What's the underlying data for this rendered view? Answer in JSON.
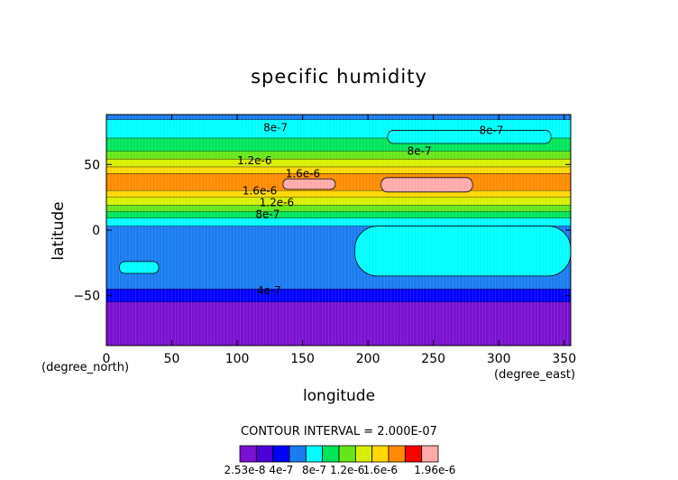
{
  "chart_data": {
    "type": "heatmap",
    "title": "specific humidity",
    "xlabel": "longitude",
    "ylabel": "latitude",
    "x_unit_label": "(degree_east)",
    "y_unit_label": "(degree_north)",
    "xlim": [
      0,
      355
    ],
    "ylim": [
      -88,
      88
    ],
    "x_ticks": [
      "0",
      "50",
      "100",
      "150",
      "200",
      "250",
      "300",
      "350"
    ],
    "x_tick_values": [
      0,
      50,
      100,
      150,
      200,
      250,
      300,
      350
    ],
    "y_ticks": [
      "50",
      "0",
      "−50"
    ],
    "y_tick_values": [
      50,
      0,
      -50
    ],
    "contour_interval_label": "CONTOUR INTERVAL = 2.000E-07",
    "levels": [
      2.53e-08,
      4e-07,
      6e-07,
      8e-07,
      1e-06,
      1.2e-06,
      1.4e-06,
      1.6e-06,
      1.8e-06,
      1.96e-06
    ],
    "colorbar_colors": [
      "#7a10d0",
      "#4c00d8",
      "#0000ff",
      "#1a7cf0",
      "#00ffff",
      "#00e65c",
      "#66e61a",
      "#d8f000",
      "#ffd800",
      "#ff8c00",
      "#ff0000",
      "#ffaaaa"
    ],
    "colorbar_labels": [
      "2.53e-8",
      "4e-7",
      "8e-7",
      "1.2e-6",
      "1.6e-6",
      "1.96e-6"
    ],
    "contour_labels": [
      {
        "text": "8e-7",
        "lon": 120,
        "lat": 78
      },
      {
        "text": "8e-7",
        "lon": 285,
        "lat": 76
      },
      {
        "text": "8e-7",
        "lon": 230,
        "lat": 60
      },
      {
        "text": "1.2e-6",
        "lon": 100,
        "lat": 53
      },
      {
        "text": "1.6e-6",
        "lon": 137,
        "lat": 43
      },
      {
        "text": "1.6e-6",
        "lon": 104,
        "lat": 30
      },
      {
        "text": "1.2e-6",
        "lon": 117,
        "lat": 21
      },
      {
        "text": "8e-7",
        "lon": 114,
        "lat": 12
      },
      {
        "text": "4e-7",
        "lon": 115,
        "lat": -46
      }
    ],
    "latitude_bands": [
      {
        "lat_top": 88,
        "lat_bottom": 84,
        "value": 6e-07
      },
      {
        "lat_top": 84,
        "lat_bottom": 70,
        "value": 8e-07
      },
      {
        "lat_top": 70,
        "lat_bottom": 60,
        "value": 1e-06
      },
      {
        "lat_top": 60,
        "lat_bottom": 54,
        "value": 1.2e-06
      },
      {
        "lat_top": 54,
        "lat_bottom": 48,
        "value": 1.4e-06
      },
      {
        "lat_top": 48,
        "lat_bottom": 43,
        "value": 1.6e-06
      },
      {
        "lat_top": 43,
        "lat_bottom": 30,
        "value": 1.8e-06
      },
      {
        "lat_top": 30,
        "lat_bottom": 25,
        "value": 1.6e-06
      },
      {
        "lat_top": 25,
        "lat_bottom": 19,
        "value": 1.4e-06
      },
      {
        "lat_top": 19,
        "lat_bottom": 14,
        "value": 1.2e-06
      },
      {
        "lat_top": 14,
        "lat_bottom": 9,
        "value": 1e-06
      },
      {
        "lat_top": 9,
        "lat_bottom": 3,
        "value": 8e-07
      },
      {
        "lat_top": 3,
        "lat_bottom": -45,
        "value": 6e-07
      },
      {
        "lat_top": -45,
        "lat_bottom": -55,
        "value": 4e-07
      },
      {
        "lat_top": -55,
        "lat_bottom": -88,
        "value": 2.53e-08
      }
    ],
    "patches": [
      {
        "lon0": 210,
        "lon1": 280,
        "lat0": 29,
        "lat1": 40,
        "value": 1.96e-06
      },
      {
        "lon0": 135,
        "lon1": 175,
        "lat0": 31,
        "lat1": 39,
        "value": 1.96e-06
      },
      {
        "lon0": 190,
        "lon1": 355,
        "lat0": -35,
        "lat1": 3,
        "value": 8e-07
      },
      {
        "lon0": 215,
        "lon1": 340,
        "lat0": 66,
        "lat1": 76,
        "value": 8e-07
      },
      {
        "lon0": 10,
        "lon1": 40,
        "lat0": -33,
        "lat1": -24,
        "value": 8e-07
      }
    ]
  }
}
